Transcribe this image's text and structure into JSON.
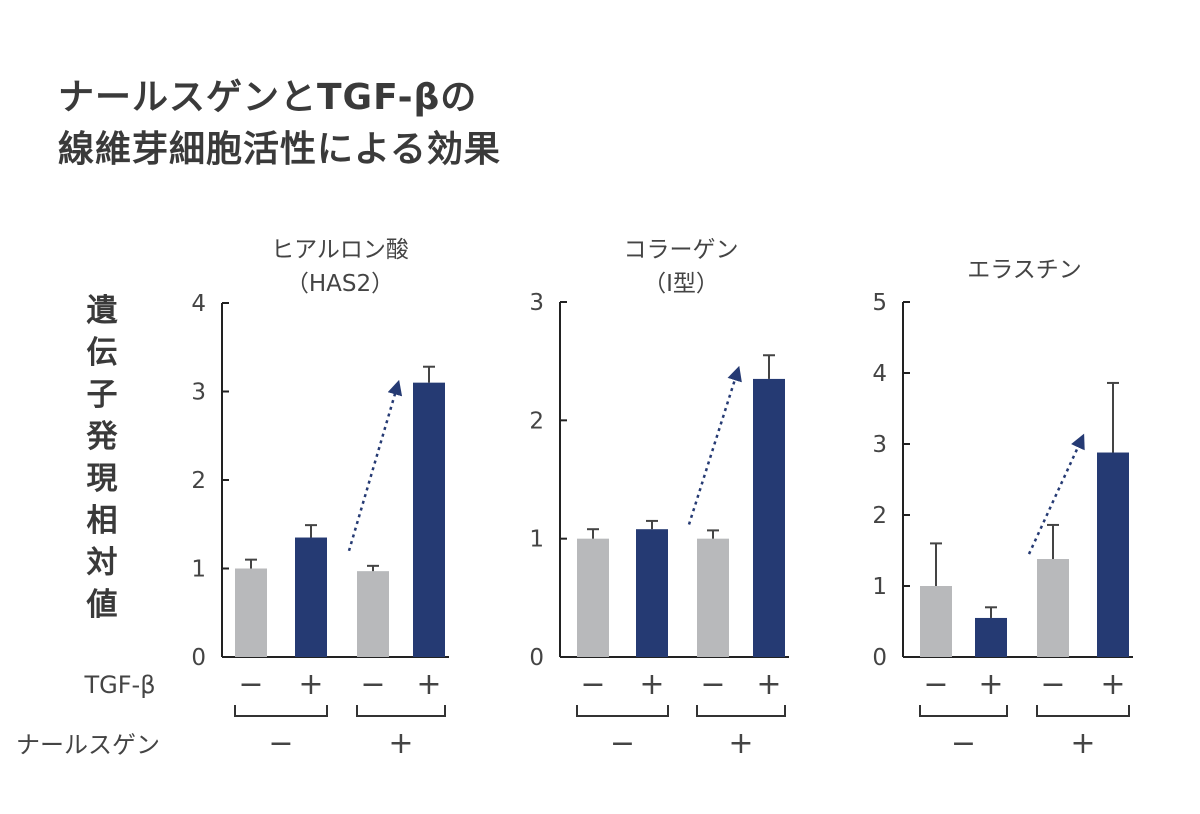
{
  "title": {
    "line1": "ナールスゲンとTGF-βの",
    "line2": "線維芽細胞活性による効果"
  },
  "ylabel": "遺伝子発現相対値",
  "row_labels": {
    "tgf": "TGF-β",
    "nahls": "ナールスゲン"
  },
  "signs": {
    "minus": "−",
    "plus": "+"
  },
  "colors": {
    "gray": "#b8b9bb",
    "navy": "#253a73",
    "arrow": "#253a73",
    "axis": "#222222"
  },
  "chart_data": [
    {
      "type": "bar",
      "title": "ヒアルロン酸",
      "subtitle": "（HAS2）",
      "ylim": [
        0,
        4
      ],
      "yticks": [
        0,
        1,
        2,
        3,
        4
      ],
      "categories": [
        "TGF-β − / ナールスゲン −",
        "TGF-β + / ナールスゲン −",
        "TGF-β − / ナールスゲン +",
        "TGF-β + / ナールスゲン +"
      ],
      "tgf": [
        "−",
        "+",
        "−",
        "+"
      ],
      "nahls": [
        "−",
        "+"
      ],
      "values": [
        1.0,
        1.35,
        0.97,
        3.1
      ],
      "errors": [
        0.1,
        0.14,
        0.06,
        0.18
      ],
      "bar_colors": [
        "gray",
        "navy",
        "gray",
        "navy"
      ],
      "arrow": {
        "from": [
          2,
          1.2
        ],
        "to": [
          3,
          3.05
        ]
      }
    },
    {
      "type": "bar",
      "title": "コラーゲン",
      "subtitle": "（I型）",
      "ylim": [
        0,
        3
      ],
      "yticks": [
        0,
        1,
        2,
        3
      ],
      "categories": [
        "TGF-β − / ナールスゲン −",
        "TGF-β + / ナールスゲン −",
        "TGF-β − / ナールスゲン +",
        "TGF-β + / ナールスゲン +"
      ],
      "tgf": [
        "−",
        "+",
        "−",
        "+"
      ],
      "nahls": [
        "−",
        "+"
      ],
      "values": [
        1.0,
        1.08,
        1.0,
        2.35
      ],
      "errors": [
        0.08,
        0.07,
        0.07,
        0.2
      ],
      "bar_colors": [
        "gray",
        "navy",
        "gray",
        "navy"
      ],
      "arrow": {
        "from": [
          2,
          1.12
        ],
        "to": [
          3,
          2.4
        ]
      }
    },
    {
      "type": "bar",
      "title": "エラスチン",
      "subtitle": "",
      "ylim": [
        0,
        5
      ],
      "yticks": [
        0,
        1,
        2,
        3,
        4,
        5
      ],
      "categories": [
        "TGF-β − / ナールスゲン −",
        "TGF-β + / ナールスゲン −",
        "TGF-β − / ナールスゲン +",
        "TGF-β + / ナールスゲン +"
      ],
      "tgf": [
        "−",
        "+",
        "−",
        "+"
      ],
      "nahls": [
        "−",
        "+"
      ],
      "values": [
        1.0,
        0.55,
        1.38,
        2.88
      ],
      "errors": [
        0.6,
        0.15,
        0.48,
        0.98
      ],
      "bar_colors": [
        "gray",
        "navy",
        "gray",
        "navy"
      ],
      "arrow": {
        "from": [
          2,
          1.45
        ],
        "to": [
          3,
          3.05
        ]
      }
    }
  ]
}
